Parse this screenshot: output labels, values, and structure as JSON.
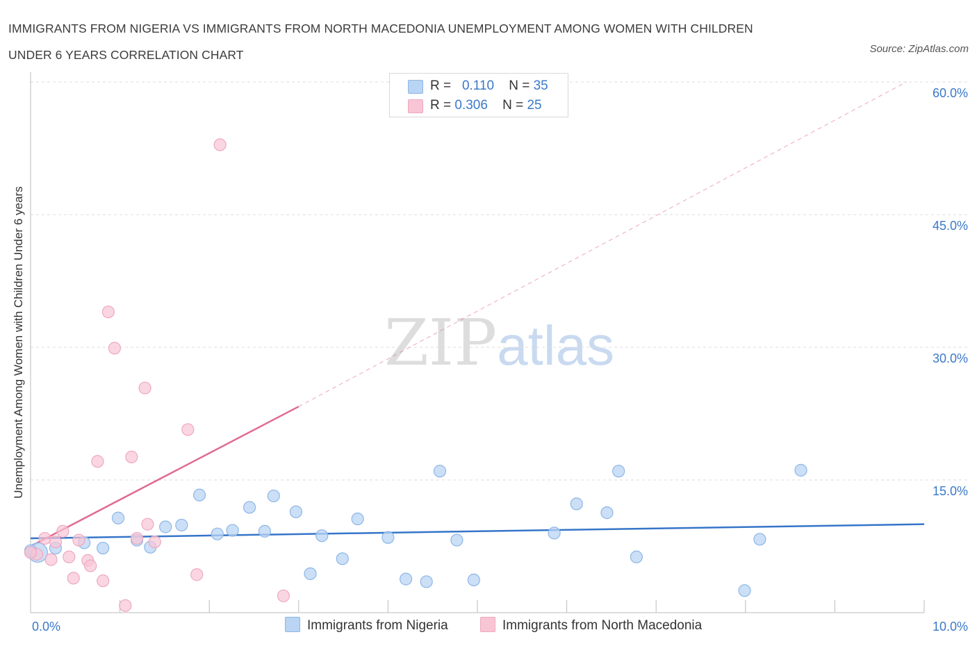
{
  "title_line1": "IMMIGRANTS FROM NIGERIA VS IMMIGRANTS FROM NORTH MACEDONIA UNEMPLOYMENT AMONG WOMEN WITH CHILDREN",
  "title_line2": "UNDER 6 YEARS CORRELATION CHART",
  "source": "Source: ZipAtlas.com",
  "watermark": {
    "zip": "ZIP",
    "atlas": "atlas"
  },
  "colors": {
    "nigeria_fill": "#b9d4f4",
    "nigeria_stroke": "#8db6e6",
    "nigeria_line": "#3575c9",
    "macedonia_fill": "#f8c5d5",
    "macedonia_stroke": "#eea8bf",
    "macedonia_line": "#e06a93",
    "axis_label": "#3b78c9",
    "grid": "#dcdcdc"
  },
  "legend": {
    "r_label": "R =",
    "n_label": "N =",
    "nigeria": {
      "r": "0.110",
      "n": "35"
    },
    "macedonia": {
      "r": "0.306",
      "n": "25"
    }
  },
  "bottom_legend": {
    "nigeria": "Immigrants from Nigeria",
    "macedonia": "Immigrants from North Macedonia"
  },
  "chart_data": {
    "type": "scatter",
    "title": "IMMIGRANTS FROM NIGERIA VS IMMIGRANTS FROM NORTH MACEDONIA UNEMPLOYMENT AMONG WOMEN WITH CHILDREN UNDER 6 YEARS CORRELATION CHART",
    "xlabel": "",
    "ylabel": "Unemployment Among Women with Children Under 6 years",
    "xlim": [
      0,
      10
    ],
    "ylim": [
      0,
      60
    ],
    "x_tick_labels": [
      {
        "value": 0,
        "label": "0.0%"
      },
      {
        "value": 10,
        "label": "10.0%"
      }
    ],
    "y_tick_labels": [
      {
        "value": 15,
        "label": "15.0%"
      },
      {
        "value": 30,
        "label": "30.0%"
      },
      {
        "value": 45,
        "label": "45.0%"
      },
      {
        "value": 60,
        "label": "60.0%"
      }
    ],
    "grid": true,
    "series": [
      {
        "name": "Immigrants from Nigeria",
        "r": 0.11,
        "n": 35,
        "trend": {
          "x": [
            0,
            10
          ],
          "y": [
            8.4,
            10.0
          ],
          "dashed_extension": false
        },
        "points": [
          {
            "x": 0.08,
            "y": 6.8,
            "big": true
          },
          {
            "x": 0.28,
            "y": 7.3
          },
          {
            "x": 0.6,
            "y": 7.9
          },
          {
            "x": 0.81,
            "y": 7.3
          },
          {
            "x": 0.98,
            "y": 10.7
          },
          {
            "x": 1.19,
            "y": 8.2
          },
          {
            "x": 1.34,
            "y": 7.4
          },
          {
            "x": 1.51,
            "y": 9.7
          },
          {
            "x": 1.69,
            "y": 9.9
          },
          {
            "x": 1.89,
            "y": 13.3
          },
          {
            "x": 2.09,
            "y": 8.9
          },
          {
            "x": 2.26,
            "y": 9.3
          },
          {
            "x": 2.45,
            "y": 11.9
          },
          {
            "x": 2.62,
            "y": 9.2
          },
          {
            "x": 2.72,
            "y": 13.2
          },
          {
            "x": 2.97,
            "y": 11.4
          },
          {
            "x": 3.13,
            "y": 4.4
          },
          {
            "x": 3.26,
            "y": 8.7
          },
          {
            "x": 3.49,
            "y": 6.1
          },
          {
            "x": 3.66,
            "y": 10.6
          },
          {
            "x": 4.0,
            "y": 8.5
          },
          {
            "x": 4.2,
            "y": 3.8
          },
          {
            "x": 4.43,
            "y": 3.5
          },
          {
            "x": 4.58,
            "y": 16.0
          },
          {
            "x": 4.77,
            "y": 8.2
          },
          {
            "x": 4.96,
            "y": 3.7
          },
          {
            "x": 5.86,
            "y": 9.0
          },
          {
            "x": 6.11,
            "y": 12.3
          },
          {
            "x": 6.45,
            "y": 11.3
          },
          {
            "x": 6.58,
            "y": 16.0
          },
          {
            "x": 6.78,
            "y": 6.3
          },
          {
            "x": 7.99,
            "y": 2.5
          },
          {
            "x": 8.16,
            "y": 8.3
          },
          {
            "x": 8.62,
            "y": 16.1
          },
          {
            "x": 0.0,
            "y": 7.0
          }
        ]
      },
      {
        "name": "Immigrants from North Macedonia",
        "r": 0.306,
        "n": 25,
        "trend": {
          "x": [
            0,
            3.0
          ],
          "y": [
            7.5,
            23.3
          ],
          "dashed_extension": {
            "x": [
              3.0,
              9.8
            ],
            "y": [
              23.3,
              60.0
            ]
          }
        },
        "points": [
          {
            "x": 0.07,
            "y": 6.6
          },
          {
            "x": 0.16,
            "y": 8.4
          },
          {
            "x": 0.23,
            "y": 6.0
          },
          {
            "x": 0.28,
            "y": 8.0
          },
          {
            "x": 0.36,
            "y": 9.2
          },
          {
            "x": 0.43,
            "y": 6.3
          },
          {
            "x": 0.48,
            "y": 3.9
          },
          {
            "x": 0.54,
            "y": 8.2
          },
          {
            "x": 0.64,
            "y": 5.9
          },
          {
            "x": 0.67,
            "y": 5.3
          },
          {
            "x": 0.75,
            "y": 17.1
          },
          {
            "x": 0.81,
            "y": 3.6
          },
          {
            "x": 0.87,
            "y": 34.0
          },
          {
            "x": 0.94,
            "y": 29.9
          },
          {
            "x": 1.06,
            "y": 0.8
          },
          {
            "x": 1.13,
            "y": 17.6
          },
          {
            "x": 1.19,
            "y": 8.4
          },
          {
            "x": 1.28,
            "y": 25.4
          },
          {
            "x": 1.31,
            "y": 10.0
          },
          {
            "x": 1.39,
            "y": 8.0
          },
          {
            "x": 1.76,
            "y": 20.7
          },
          {
            "x": 1.86,
            "y": 4.3
          },
          {
            "x": 2.12,
            "y": 52.9
          },
          {
            "x": 2.83,
            "y": 1.9
          },
          {
            "x": 0.0,
            "y": 6.8
          }
        ]
      }
    ]
  }
}
